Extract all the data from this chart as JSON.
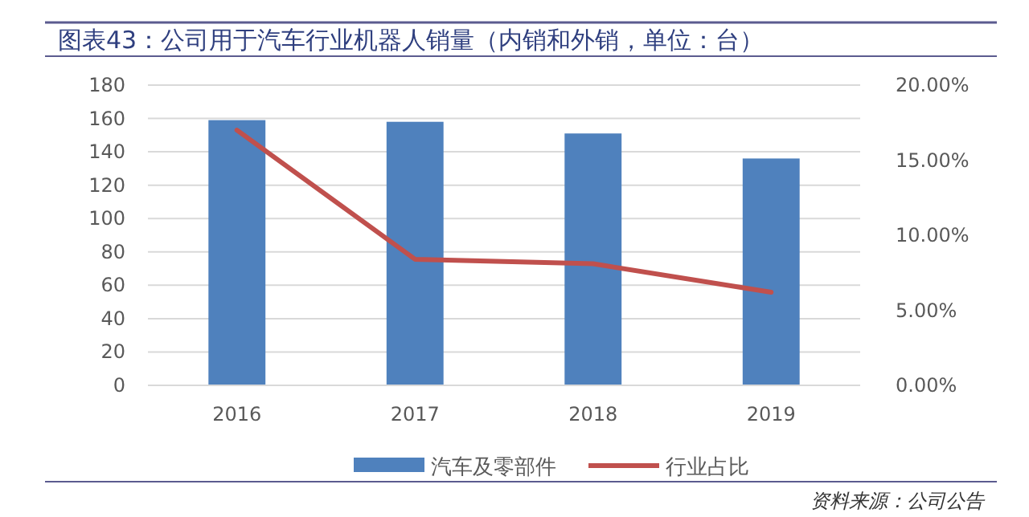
{
  "chart_data": {
    "type": "bar",
    "title": "图表43：公司用于汽车行业机器人销量（内销和外销，单位：台）",
    "categories": [
      "2016",
      "2017",
      "2018",
      "2019"
    ],
    "series": [
      {
        "name": "汽车及零部件",
        "color": "#4f81bd",
        "values": [
          159,
          158,
          151,
          136
        ]
      },
      {
        "name": "行业占比",
        "type": "line",
        "axis": "y2",
        "color": "#c0504d",
        "values": [
          17.0,
          8.4,
          8.1,
          6.2
        ]
      }
    ],
    "ylim": [
      0,
      180
    ],
    "yticks": [
      0,
      20,
      40,
      60,
      80,
      100,
      120,
      140,
      160,
      180
    ],
    "y2lim": [
      0,
      20
    ],
    "y2ticks": [
      {
        "value": 0,
        "label": "0.00%"
      },
      {
        "value": 5,
        "label": "5.00%"
      },
      {
        "value": 10,
        "label": "10.00%"
      },
      {
        "value": 15,
        "label": "15.00%"
      },
      {
        "value": 20,
        "label": "20.00%"
      }
    ],
    "grid": "y",
    "legend": "bottom",
    "marker": "none",
    "annotations": [
      "资料来源：公司公告"
    ]
  }
}
